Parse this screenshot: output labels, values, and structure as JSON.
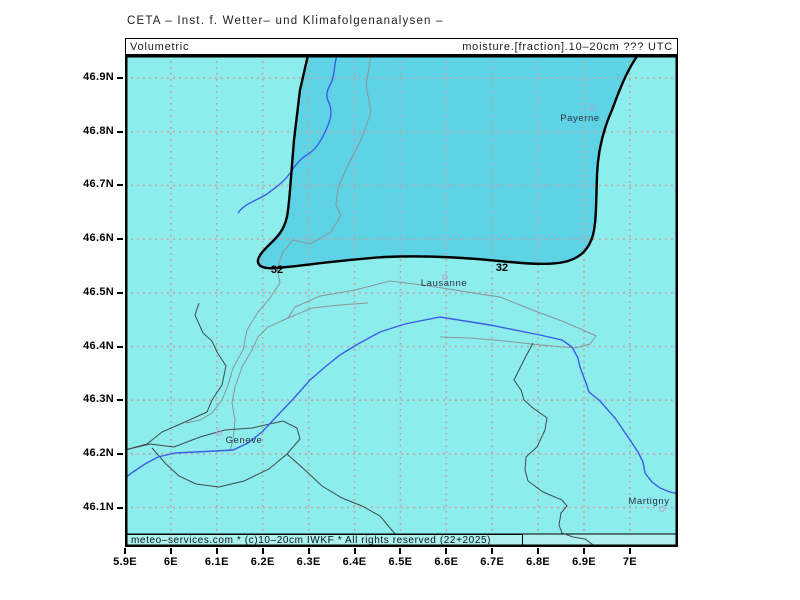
{
  "window": {
    "title": "CETA – Inst. f. Wetter– und Klimafolgenanalysen –"
  },
  "header": {
    "left_label": "Volumetric",
    "right_label": "moisture.[fraction].10–20cm ??? UTC"
  },
  "footer": {
    "copyright": "meteo–services.com * (c)10–20cm IWKF * All rights reserved (22+2025)"
  },
  "axes": {
    "x_labels": [
      "5.9E",
      "6E",
      "6.1E",
      "6.2E",
      "6.3E",
      "6.4E",
      "6.5E",
      "6.6E",
      "6.7E",
      "6.8E",
      "6.9E",
      "7E"
    ],
    "y_labels": [
      "46.9N",
      "46.8N",
      "46.7N",
      "46.6N",
      "46.5N",
      "46.4N",
      "46.3N",
      "46.2N",
      "46.1N"
    ]
  },
  "map": {
    "contour": {
      "value": 32,
      "labels": [
        "32",
        "32"
      ]
    },
    "cities": [
      {
        "name": "Payerne"
      },
      {
        "name": "Lausanne"
      },
      {
        "name": "Geneve"
      },
      {
        "name": "Martigny"
      }
    ]
  },
  "colors": {
    "map_background": "#8dedec",
    "contour_fill": "#5ed3e6",
    "contour_line": "#000000",
    "grid_dots": "#ca9e9e",
    "river": "#3b5de5",
    "border_dark": "#3f4b4b",
    "border_light": "#8a9696",
    "footer_strip": "#aff1f1",
    "city_marker": "#b9a0d0"
  },
  "chart_data": {
    "type": "heatmap",
    "subtype": "geographic-contour-map",
    "title": "CETA – Inst. f. Wetter– und Klimafolgenanalysen –",
    "variable": "Volumetric moisture [fraction] 10–20cm",
    "valid_time": "??? UTC",
    "contour_levels": [
      32
    ],
    "contour_region": "values >= 32 shaded darker cyan, covering upper-centre of map from about 6.3E to 7.0E north of about 46.55N",
    "lon_range": [
      5.9,
      7.1
    ],
    "lat_range": [
      46.03,
      46.94
    ],
    "grid_interval_deg": 0.1,
    "cities": [
      {
        "name": "Payerne",
        "lon": 6.92,
        "lat": 46.84
      },
      {
        "name": "Lausanne",
        "lon": 6.6,
        "lat": 46.53
      },
      {
        "name": "Geneve",
        "lon": 6.11,
        "lat": 46.24
      },
      {
        "name": "Martigny",
        "lon": 7.07,
        "lat": 46.1
      }
    ],
    "legend_position": "none",
    "grid": true
  }
}
